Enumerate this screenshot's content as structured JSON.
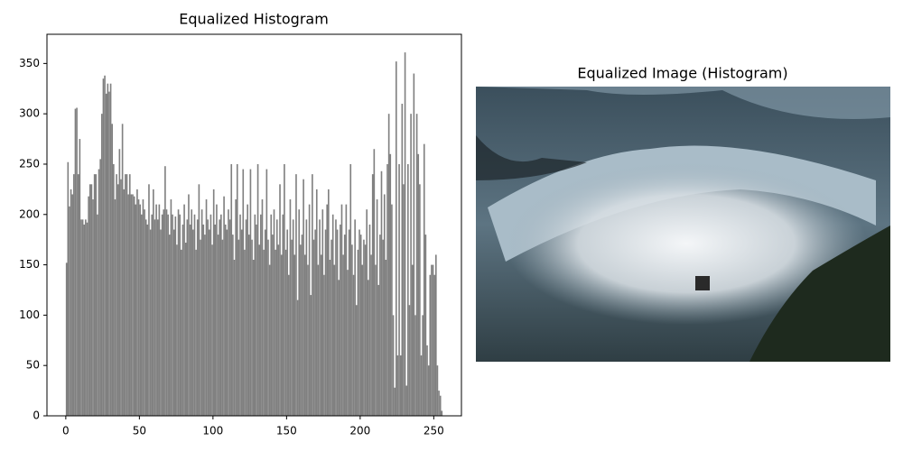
{
  "chart_data": [
    {
      "type": "histogram",
      "title": "Equalized Histogram",
      "color": "#808080",
      "bins": [
        0,
        1,
        2,
        3,
        4,
        5,
        6,
        7,
        8,
        9,
        10,
        11,
        12,
        13,
        14,
        15,
        16,
        17,
        18,
        19,
        20,
        21,
        22,
        23,
        24,
        25,
        26,
        27,
        28,
        29,
        30,
        31,
        32,
        33,
        34,
        35,
        36,
        37,
        38,
        39,
        40,
        41,
        42,
        43,
        44,
        45,
        46,
        47,
        48,
        49,
        50,
        51,
        52,
        53,
        54,
        55,
        56,
        57,
        58,
        59,
        60,
        61,
        62,
        63,
        64,
        65,
        66,
        67,
        68,
        69,
        70,
        71,
        72,
        73,
        74,
        75,
        76,
        77,
        78,
        79,
        80,
        81,
        82,
        83,
        84,
        85,
        86,
        87,
        88,
        89,
        90,
        91,
        92,
        93,
        94,
        95,
        96,
        97,
        98,
        99,
        100,
        101,
        102,
        103,
        104,
        105,
        106,
        107,
        108,
        109,
        110,
        111,
        112,
        113,
        114,
        115,
        116,
        117,
        118,
        119,
        120,
        121,
        122,
        123,
        124,
        125,
        126,
        127,
        128,
        129,
        130,
        131,
        132,
        133,
        134,
        135,
        136,
        137,
        138,
        139,
        140,
        141,
        142,
        143,
        144,
        145,
        146,
        147,
        148,
        149,
        150,
        151,
        152,
        153,
        154,
        155,
        156,
        157,
        158,
        159,
        160,
        161,
        162,
        163,
        164,
        165,
        166,
        167,
        168,
        169,
        170,
        171,
        172,
        173,
        174,
        175,
        176,
        177,
        178,
        179,
        180,
        181,
        182,
        183,
        184,
        185,
        186,
        187,
        188,
        189,
        190,
        191,
        192,
        193,
        194,
        195,
        196,
        197,
        198,
        199,
        200,
        201,
        202,
        203,
        204,
        205,
        206,
        207,
        208,
        209,
        210,
        211,
        212,
        213,
        214,
        215,
        216,
        217,
        218,
        219,
        220,
        221,
        222,
        223,
        224,
        225,
        226,
        227,
        228,
        229,
        230,
        231,
        232,
        233,
        234,
        235,
        236,
        237,
        238,
        239,
        240,
        241,
        242,
        243,
        244,
        245,
        246,
        247,
        248,
        249,
        250,
        251,
        252,
        253,
        254,
        255,
        256
      ],
      "values": [
        152,
        252,
        208,
        225,
        220,
        240,
        305,
        306,
        240,
        275,
        195,
        195,
        190,
        195,
        192,
        218,
        230,
        230,
        215,
        240,
        240,
        200,
        245,
        255,
        300,
        335,
        338,
        320,
        330,
        322,
        330,
        290,
        250,
        215,
        240,
        230,
        265,
        235,
        290,
        225,
        240,
        240,
        220,
        240,
        220,
        220,
        218,
        210,
        225,
        215,
        210,
        200,
        215,
        205,
        195,
        190,
        230,
        185,
        200,
        225,
        195,
        210,
        195,
        210,
        185,
        200,
        205,
        248,
        205,
        200,
        180,
        215,
        200,
        185,
        198,
        170,
        205,
        200,
        165,
        190,
        210,
        172,
        195,
        220,
        190,
        205,
        185,
        200,
        165,
        195,
        230,
        175,
        205,
        190,
        180,
        215,
        195,
        185,
        200,
        170,
        225,
        190,
        210,
        180,
        195,
        200,
        175,
        218,
        190,
        185,
        205,
        195,
        250,
        180,
        155,
        215,
        250,
        175,
        200,
        185,
        245,
        165,
        195,
        210,
        180,
        245,
        175,
        155,
        200,
        190,
        250,
        170,
        200,
        215,
        165,
        185,
        245,
        175,
        150,
        200,
        180,
        205,
        165,
        195,
        170,
        230,
        160,
        200,
        250,
        165,
        185,
        140,
        215,
        175,
        195,
        160,
        240,
        115,
        205,
        170,
        180,
        235,
        160,
        195,
        150,
        210,
        120,
        240,
        175,
        185,
        225,
        150,
        195,
        160,
        205,
        140,
        185,
        210,
        225,
        155,
        175,
        200,
        150,
        195,
        185,
        135,
        190,
        210,
        160,
        180,
        210,
        145,
        185,
        250,
        170,
        140,
        195,
        110,
        165,
        185,
        180,
        150,
        175,
        170,
        205,
        135,
        190,
        160,
        240,
        265,
        150,
        215,
        130,
        180,
        243,
        175,
        220,
        155,
        250,
        300,
        260,
        210,
        100,
        28,
        352,
        60,
        250,
        60,
        310,
        230,
        361,
        30,
        250,
        110,
        300,
        150,
        340,
        100,
        300,
        260,
        230,
        60,
        100,
        270,
        180,
        70,
        50,
        140,
        150,
        150,
        140,
        160,
        50,
        25,
        20,
        5
      ],
      "xlim": [
        -12.8,
        268.8
      ],
      "xticks": [
        0,
        50,
        100,
        150,
        200,
        250
      ],
      "ylim": [
        0,
        379
      ],
      "yticks": [
        0,
        50,
        100,
        150,
        200,
        250,
        300,
        350
      ]
    },
    {
      "type": "image",
      "title": "Equalized Image (Histogram)"
    }
  ]
}
